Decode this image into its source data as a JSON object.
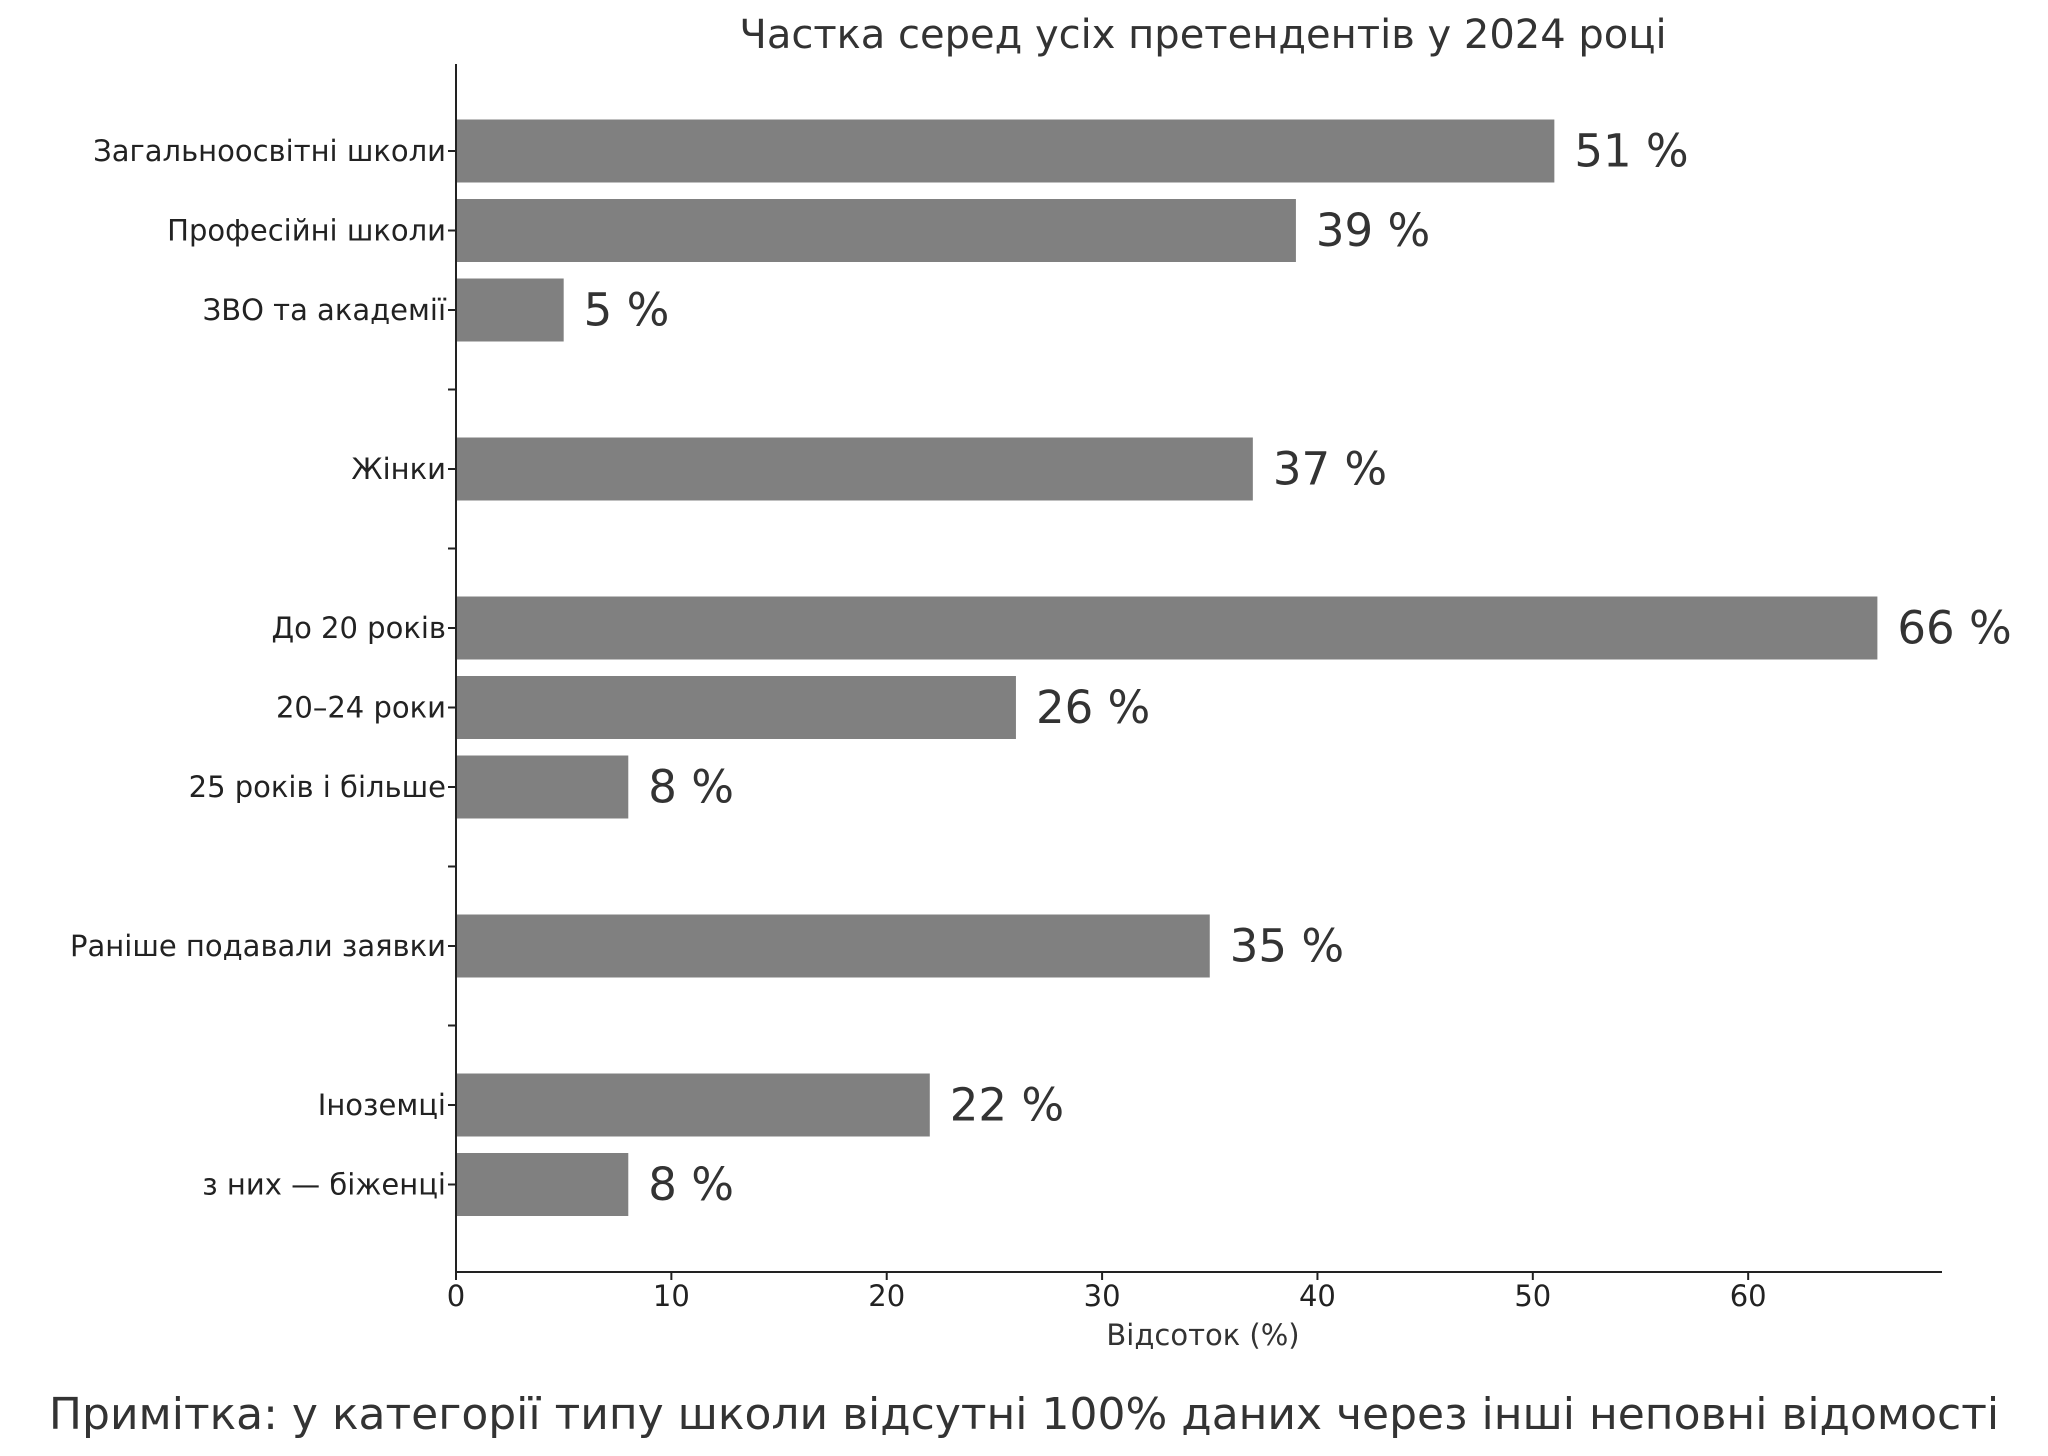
{
  "chart_data": {
    "type": "bar",
    "orientation": "horizontal",
    "title": "Частка серед усіх претендентів у 2024 році",
    "xlabel": "Відсоток (%)",
    "ylabel": "",
    "xlim": [
      0,
      69
    ],
    "x_ticks": [
      0,
      10,
      20,
      30,
      40,
      50,
      60
    ],
    "grid": false,
    "bar_color": "#808080",
    "groups": [
      {
        "categories": [
          "Загальноосвітні школи",
          "Професійні школи",
          "ЗВО та академії"
        ],
        "values": [
          51,
          39,
          5
        ],
        "labels": [
          "51 %",
          "39 %",
          "5 %"
        ]
      },
      {
        "categories": [
          "Жінки"
        ],
        "values": [
          37
        ],
        "labels": [
          "37 %"
        ]
      },
      {
        "categories": [
          "До 20 років",
          "20–24 роки",
          "25 років і більше"
        ],
        "values": [
          66,
          26,
          8
        ],
        "labels": [
          "66 %",
          "26 %",
          "8 %"
        ]
      },
      {
        "categories": [
          "Раніше подавали заявки"
        ],
        "values": [
          35
        ],
        "labels": [
          "35 %"
        ]
      },
      {
        "categories": [
          "Іноземці",
          "з них — біженці"
        ],
        "values": [
          22,
          8
        ],
        "labels": [
          "22 %",
          "8 %"
        ]
      }
    ]
  },
  "note": "Примітка: у категорії типу школи відсутні 100% даних через інші неповні відомості"
}
